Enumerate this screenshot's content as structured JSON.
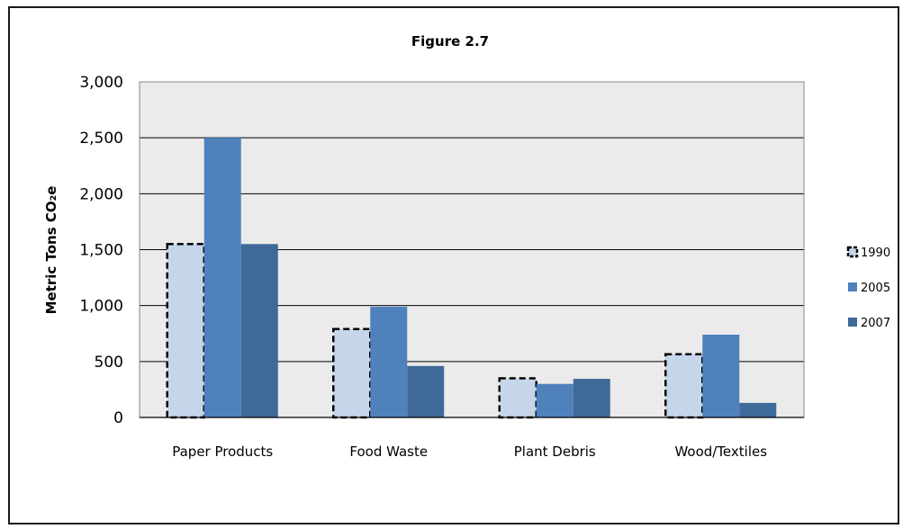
{
  "chart_data": {
    "type": "bar",
    "title": "Figure 2.7",
    "xlabel": "",
    "ylabel": "Metric Tons CO₂e",
    "ylim": [
      0,
      3000
    ],
    "yticks": [
      0,
      500,
      1000,
      1500,
      2000,
      2500,
      3000
    ],
    "ytick_labels": [
      "0",
      "500",
      "1,000",
      "1,500",
      "2,000",
      "2,500",
      "3,000"
    ],
    "categories": [
      "Paper Products",
      "Food Waste",
      "Plant Debris",
      "Wood/Textiles"
    ],
    "series": [
      {
        "name": "1990",
        "values": [
          1550,
          790,
          350,
          565
        ],
        "color": "#c5d5ea",
        "outline": "dashed"
      },
      {
        "name": "2005",
        "values": [
          2500,
          990,
          300,
          740
        ],
        "color": "#4f81bd"
      },
      {
        "name": "2007",
        "values": [
          1550,
          460,
          345,
          130
        ],
        "color": "#3f6998"
      }
    ],
    "grid": true,
    "plot_background": "#ebebeb",
    "legend_position": "right"
  }
}
